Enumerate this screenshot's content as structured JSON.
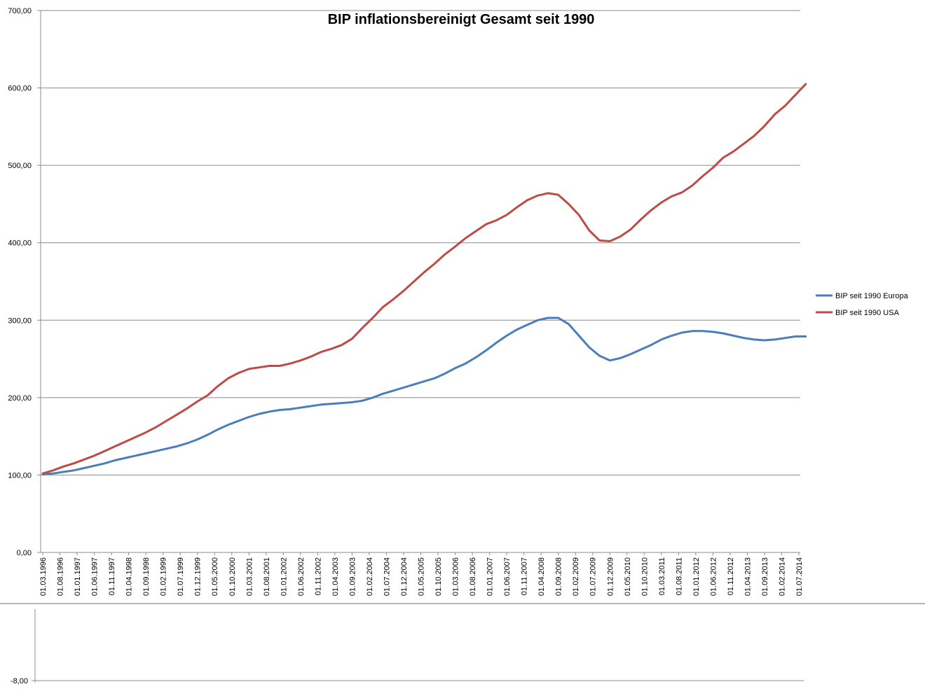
{
  "chart_data": [
    {
      "type": "line",
      "title": "BIP inflationsbereinigt Gesamt seit 1990",
      "xlabel": "",
      "ylabel": "",
      "ylim": [
        0,
        700
      ],
      "yticks": [
        "0,00",
        "100,00",
        "200,00",
        "300,00",
        "400,00",
        "500,00",
        "600,00",
        "700,00"
      ],
      "grid": true,
      "legend_position": "right",
      "x_tick_labels": [
        "01.03.1996",
        "01.08.1996",
        "01.01.1997",
        "01.06.1997",
        "01.11.1997",
        "01.04.1998",
        "01.09.1998",
        "01.02.1999",
        "01.07.1999",
        "01.12.1999",
        "01.05.2000",
        "01.10.2000",
        "01.03.2001",
        "01.08.2001",
        "01.01.2002",
        "01.06.2002",
        "01.11.2002",
        "01.04.2003",
        "01.09.2003",
        "01.02.2004",
        "01.07.2004",
        "01.12.2004",
        "01.05.2005",
        "01.10.2005",
        "01.03.2006",
        "01.08.2006",
        "01.01.2007",
        "01.06.2007",
        "01.11.2007",
        "01.04.2008",
        "01.09.2008",
        "01.02.2009",
        "01.07.2009",
        "01.12.2009",
        "01.05.2010",
        "01.10.2010",
        "01.03.2011",
        "01.08.2011",
        "01.01.2012",
        "01.06.2012",
        "01.11.2012",
        "01.04.2013",
        "01.09.2013",
        "01.02.2014",
        "01.07.2014"
      ],
      "x": [
        "1996-03",
        "1996-06",
        "1996-09",
        "1996-12",
        "1997-03",
        "1997-06",
        "1997-09",
        "1997-12",
        "1998-03",
        "1998-06",
        "1998-09",
        "1998-12",
        "1999-03",
        "1999-06",
        "1999-09",
        "1999-12",
        "2000-03",
        "2000-06",
        "2000-09",
        "2000-12",
        "2001-03",
        "2001-06",
        "2001-09",
        "2001-12",
        "2002-03",
        "2002-06",
        "2002-09",
        "2002-12",
        "2003-03",
        "2003-06",
        "2003-09",
        "2003-12",
        "2004-03",
        "2004-06",
        "2004-09",
        "2004-12",
        "2005-03",
        "2005-06",
        "2005-09",
        "2005-12",
        "2006-03",
        "2006-06",
        "2006-09",
        "2006-12",
        "2007-03",
        "2007-06",
        "2007-09",
        "2007-12",
        "2008-03",
        "2008-06",
        "2008-09",
        "2008-12",
        "2009-03",
        "2009-06",
        "2009-09",
        "2009-12",
        "2010-03",
        "2010-06",
        "2010-09",
        "2010-12",
        "2011-03",
        "2011-06",
        "2011-09",
        "2011-12",
        "2012-03",
        "2012-06",
        "2012-09",
        "2012-12",
        "2013-03",
        "2013-06",
        "2013-09",
        "2013-12",
        "2014-03",
        "2014-06",
        "2014-09"
      ],
      "series": [
        {
          "name": "BIP seit 1990 Europa",
          "color": "#4a7ebb",
          "values": [
            101,
            102,
            104,
            106,
            109,
            112,
            115,
            119,
            122,
            125,
            128,
            131,
            134,
            137,
            141,
            146,
            152,
            159,
            165,
            170,
            175,
            179,
            182,
            184,
            185,
            187,
            189,
            191,
            192,
            193,
            194,
            196,
            200,
            205,
            209,
            213,
            217,
            221,
            225,
            231,
            238,
            244,
            252,
            261,
            271,
            280,
            288,
            294,
            300,
            303,
            303,
            295,
            280,
            265,
            254,
            248,
            251,
            256,
            262,
            268,
            275,
            280,
            284,
            286,
            286,
            285,
            283,
            280,
            277,
            275,
            274,
            275,
            277,
            279,
            279
          ]
        },
        {
          "name": "BIP seit 1990 USA",
          "color": "#be4b48",
          "values": [
            102,
            106,
            111,
            115,
            120,
            125,
            131,
            137,
            143,
            149,
            155,
            162,
            170,
            178,
            186,
            195,
            203,
            215,
            225,
            232,
            237,
            239,
            241,
            241,
            244,
            248,
            253,
            259,
            263,
            268,
            276,
            290,
            303,
            317,
            327,
            338,
            350,
            362,
            373,
            385,
            395,
            406,
            415,
            424,
            429,
            436,
            446,
            455,
            461,
            464,
            462,
            450,
            436,
            416,
            403,
            402,
            408,
            417,
            430,
            442,
            452,
            460,
            465,
            474,
            486,
            497,
            510,
            518,
            528,
            538,
            551,
            566,
            577,
            591,
            605
          ]
        }
      ]
    },
    {
      "type": "line",
      "title": "",
      "ytick_label": "-8,00"
    }
  ]
}
